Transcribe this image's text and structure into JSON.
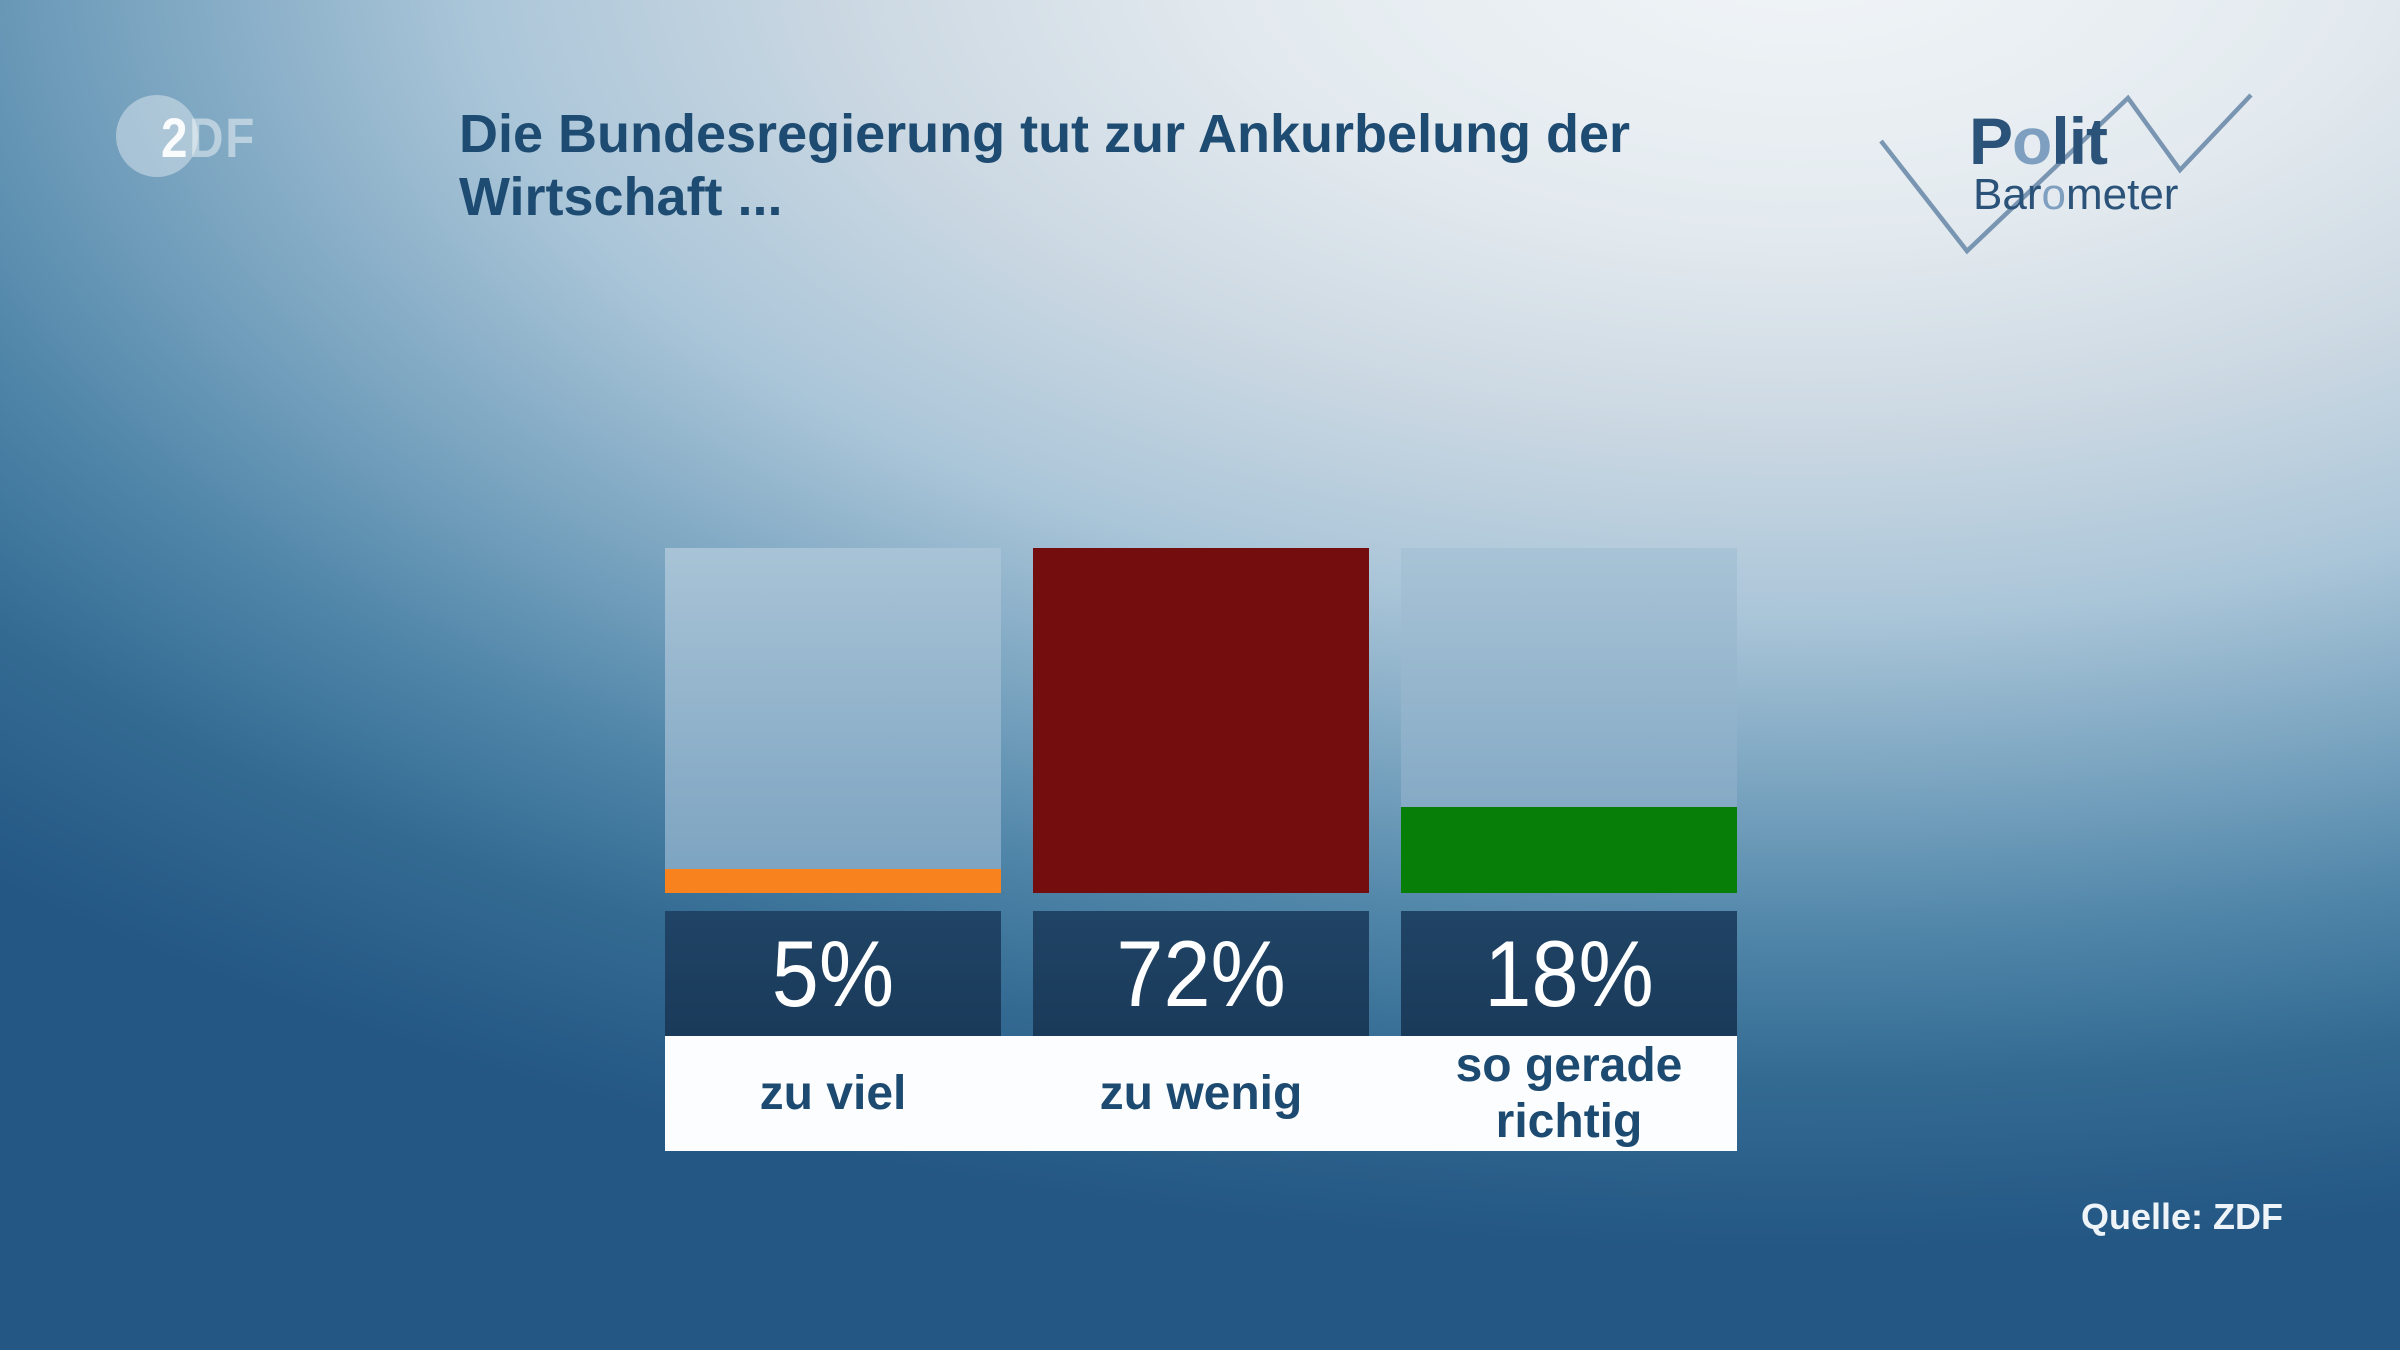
{
  "header": {
    "title_lines": [
      "Die Bundesregierung tut zur Ankurbelung der",
      "Wirtschaft ..."
    ]
  },
  "branding": {
    "zdf_logo": {
      "char_solid": "2",
      "chars_faded": "DF"
    },
    "politbarometer": {
      "line1_pre": "P",
      "line1_accent": "o",
      "line1_post": "lit",
      "line2_pre": "Bar",
      "line2_accent": "o",
      "line2_post": "meter",
      "text_color": "#2b5379",
      "accent_color": "#7f9fc1",
      "zigzag_color": "#6d8cab"
    }
  },
  "footer": {
    "source": "Quelle: ZDF"
  },
  "chart_data": {
    "type": "bar",
    "orientation": "vertical",
    "title": "Die Bundesregierung tut zur Ankurbelung der Wirtschaft ...",
    "categories": [
      "zu viel",
      "zu wenig",
      "so gerade richtig"
    ],
    "values": [
      5,
      72,
      18
    ],
    "value_labels": [
      "5%",
      "72%",
      "18%"
    ],
    "colors": [
      "#f8831e",
      "#740e0e",
      "#077e07"
    ],
    "scale_max": 72,
    "ylim": [
      0,
      72
    ],
    "grid": false,
    "legend": false,
    "track_color": "#9dbdd3",
    "value_plate_color": "#1d4060",
    "label_band_color": "#fcfdfe",
    "source": "Quelle: ZDF"
  }
}
